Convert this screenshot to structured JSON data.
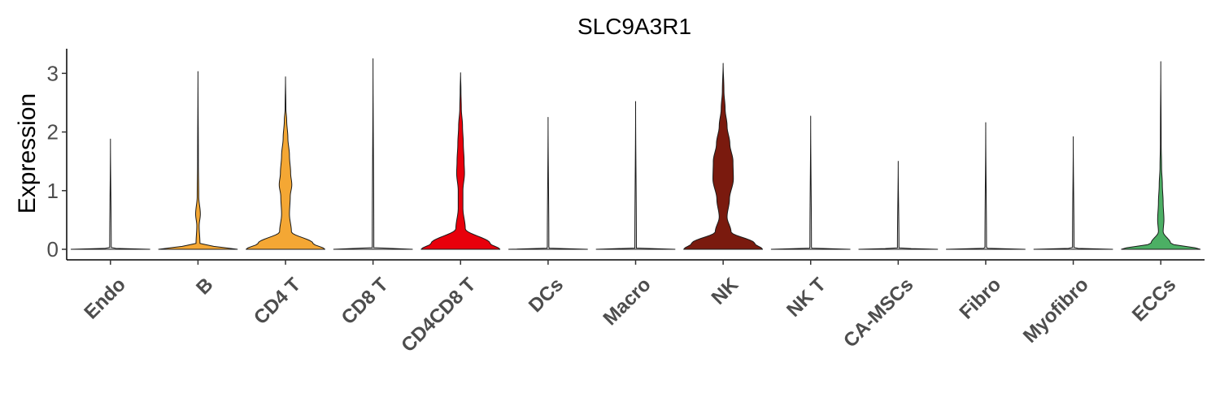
{
  "chart_data": {
    "type": "violin",
    "title": "SLC9A3R1",
    "xlabel": "",
    "ylabel": "Expression",
    "yticks": [
      "0",
      "1",
      "2",
      "3"
    ],
    "ylim": [
      -0.18,
      3.42
    ],
    "grid": false,
    "legend": "none",
    "categories": [
      "Endo",
      "B",
      "CD4 T",
      "CD8 T",
      "CD4CD8 T",
      "DCs",
      "Macro",
      "NK",
      "NK T",
      "CA-MSCs",
      "Fibro",
      "Myofibro",
      "ECCs"
    ],
    "colors": [
      "#e8e8e8",
      "#f4a734",
      "#f4a734",
      "#d9d9d9",
      "#e8000b",
      "#d9d9d9",
      "#d9d9d9",
      "#7a1a0e",
      "#d9d9d9",
      "#d9d9d9",
      "#d9d9d9",
      "#d9d9d9",
      "#4caf64"
    ],
    "max_values": [
      1.88,
      3.03,
      2.94,
      3.25,
      3.01,
      2.25,
      2.52,
      3.17,
      2.27,
      1.5,
      2.16,
      1.92,
      3.2
    ],
    "density_profiles": [
      [
        [
          0,
          1.0
        ],
        [
          0.02,
          0.02
        ],
        [
          1.88,
          0.0
        ]
      ],
      [
        [
          0,
          1.0
        ],
        [
          0.05,
          0.4
        ],
        [
          0.1,
          0.05
        ],
        [
          0.4,
          0.03
        ],
        [
          0.6,
          0.06
        ],
        [
          0.9,
          0.02
        ],
        [
          1.5,
          0.01
        ],
        [
          3.03,
          0.0
        ]
      ],
      [
        [
          0,
          1.0
        ],
        [
          0.1,
          0.7
        ],
        [
          0.3,
          0.15
        ],
        [
          0.6,
          0.1
        ],
        [
          0.9,
          0.12
        ],
        [
          1.1,
          0.16
        ],
        [
          1.3,
          0.13
        ],
        [
          1.6,
          0.1
        ],
        [
          1.9,
          0.06
        ],
        [
          2.2,
          0.03
        ],
        [
          2.4,
          0.01
        ],
        [
          2.94,
          0.0
        ]
      ],
      [
        [
          0,
          1.0
        ],
        [
          0.02,
          0.02
        ],
        [
          3.25,
          0.0
        ]
      ],
      [
        [
          0,
          1.0
        ],
        [
          0.1,
          0.75
        ],
        [
          0.35,
          0.12
        ],
        [
          0.7,
          0.06
        ],
        [
          1.0,
          0.06
        ],
        [
          1.3,
          0.1
        ],
        [
          1.5,
          0.09
        ],
        [
          1.8,
          0.07
        ],
        [
          2.1,
          0.05
        ],
        [
          2.4,
          0.02
        ],
        [
          2.7,
          0.01
        ],
        [
          3.01,
          0.0
        ]
      ],
      [
        [
          0,
          1.0
        ],
        [
          0.02,
          0.02
        ],
        [
          2.25,
          0.0
        ]
      ],
      [
        [
          0,
          1.0
        ],
        [
          0.02,
          0.02
        ],
        [
          2.52,
          0.0
        ]
      ],
      [
        [
          0,
          1.0
        ],
        [
          0.1,
          0.8
        ],
        [
          0.3,
          0.2
        ],
        [
          0.55,
          0.1
        ],
        [
          0.85,
          0.16
        ],
        [
          1.2,
          0.26
        ],
        [
          1.5,
          0.25
        ],
        [
          1.8,
          0.17
        ],
        [
          2.1,
          0.1
        ],
        [
          2.4,
          0.05
        ],
        [
          2.7,
          0.02
        ],
        [
          3.17,
          0.0
        ]
      ],
      [
        [
          0,
          1.0
        ],
        [
          0.02,
          0.02
        ],
        [
          2.27,
          0.0
        ]
      ],
      [
        [
          0,
          1.0
        ],
        [
          0.02,
          0.02
        ],
        [
          1.5,
          0.0
        ]
      ],
      [
        [
          0,
          1.0
        ],
        [
          0.02,
          0.02
        ],
        [
          2.16,
          0.0
        ]
      ],
      [
        [
          0,
          1.0
        ],
        [
          0.02,
          0.02
        ],
        [
          1.92,
          0.0
        ]
      ],
      [
        [
          0,
          1.0
        ],
        [
          0.1,
          0.25
        ],
        [
          0.3,
          0.06
        ],
        [
          0.5,
          0.08
        ],
        [
          0.8,
          0.06
        ],
        [
          1.1,
          0.04
        ],
        [
          1.4,
          0.02
        ],
        [
          1.8,
          0.01
        ],
        [
          3.2,
          0.0
        ]
      ]
    ]
  }
}
